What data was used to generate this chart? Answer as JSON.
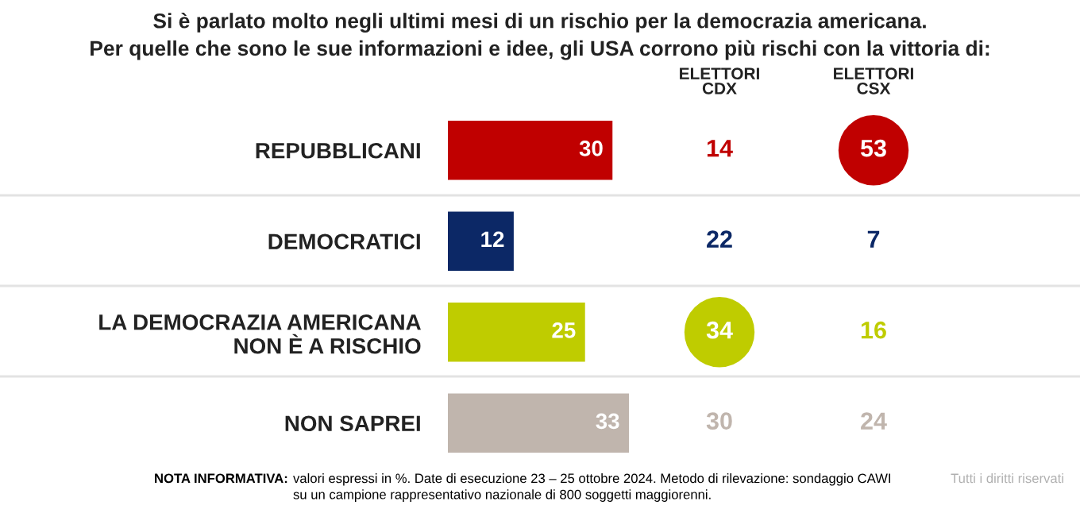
{
  "chart_data": [
    {
      "type": "bar",
      "orientation": "horizontal",
      "title": "Si è parlato molto negli ultimi mesi di un rischio per la democrazia americana.\nPer quelle che sono le sue informazioni e idee, gli USA corrono più rischi con la vittoria di:",
      "categories": [
        "REPUBBLICANI",
        "DEMOCRATICI",
        "LA DEMOCRAZIA AMERICANA\nNON È A RISCHIO",
        "NON SAPREI"
      ],
      "values": [
        30,
        12,
        25,
        33
      ],
      "colors": [
        "#c00000",
        "#0c2866",
        "#bfcc00",
        "#c0b5ad"
      ],
      "data_labels": true,
      "annotations": [
        "NOTA INFORMATIVA:",
        "valori espressi in %. Date di esecuzione 23 – 25 ottobre 2024. Metodo di rilevazione: sondaggio CAWI\nsu un campione rappresentativo nazionale di 800 soggetti maggiorenni.",
        "Tutti i diritti riservati"
      ]
    },
    {
      "type": "other",
      "title": "ELETTORI\nCDX",
      "values": [
        14,
        22,
        34,
        30
      ],
      "data_labels": true,
      "colors": [
        "#c00000",
        "#0c2866",
        "#bfcc00",
        "#c0b5ad"
      ]
    },
    {
      "type": "other",
      "title": "ELETTORI\nCSX",
      "values": [
        53,
        7,
        16,
        24
      ],
      "data_labels": true,
      "colors": [
        "#c00000",
        "#0c2866",
        "#bfcc00",
        "#c0b5ad"
      ]
    }
  ]
}
